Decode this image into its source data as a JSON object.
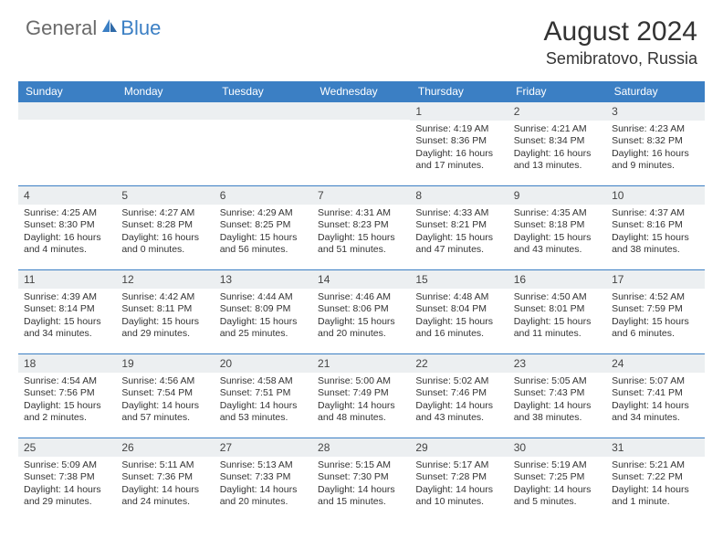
{
  "logo": {
    "general": "General",
    "blue": "Blue"
  },
  "title": {
    "main": "August 2024",
    "sub": "Semibratovo, Russia"
  },
  "colors": {
    "header_bg": "#3b7fc4",
    "header_fg": "#ffffff",
    "daynum_bg": "#eceff1",
    "border": "#3b7fc4",
    "text": "#333333",
    "logo_gray": "#6a6a6a",
    "logo_blue": "#3b7fc4"
  },
  "dow": [
    "Sunday",
    "Monday",
    "Tuesday",
    "Wednesday",
    "Thursday",
    "Friday",
    "Saturday"
  ],
  "weeks": [
    [
      {
        "n": "",
        "sr": "",
        "ss": "",
        "dl": ""
      },
      {
        "n": "",
        "sr": "",
        "ss": "",
        "dl": ""
      },
      {
        "n": "",
        "sr": "",
        "ss": "",
        "dl": ""
      },
      {
        "n": "",
        "sr": "",
        "ss": "",
        "dl": ""
      },
      {
        "n": "1",
        "sr": "Sunrise: 4:19 AM",
        "ss": "Sunset: 8:36 PM",
        "dl": "Daylight: 16 hours and 17 minutes."
      },
      {
        "n": "2",
        "sr": "Sunrise: 4:21 AM",
        "ss": "Sunset: 8:34 PM",
        "dl": "Daylight: 16 hours and 13 minutes."
      },
      {
        "n": "3",
        "sr": "Sunrise: 4:23 AM",
        "ss": "Sunset: 8:32 PM",
        "dl": "Daylight: 16 hours and 9 minutes."
      }
    ],
    [
      {
        "n": "4",
        "sr": "Sunrise: 4:25 AM",
        "ss": "Sunset: 8:30 PM",
        "dl": "Daylight: 16 hours and 4 minutes."
      },
      {
        "n": "5",
        "sr": "Sunrise: 4:27 AM",
        "ss": "Sunset: 8:28 PM",
        "dl": "Daylight: 16 hours and 0 minutes."
      },
      {
        "n": "6",
        "sr": "Sunrise: 4:29 AM",
        "ss": "Sunset: 8:25 PM",
        "dl": "Daylight: 15 hours and 56 minutes."
      },
      {
        "n": "7",
        "sr": "Sunrise: 4:31 AM",
        "ss": "Sunset: 8:23 PM",
        "dl": "Daylight: 15 hours and 51 minutes."
      },
      {
        "n": "8",
        "sr": "Sunrise: 4:33 AM",
        "ss": "Sunset: 8:21 PM",
        "dl": "Daylight: 15 hours and 47 minutes."
      },
      {
        "n": "9",
        "sr": "Sunrise: 4:35 AM",
        "ss": "Sunset: 8:18 PM",
        "dl": "Daylight: 15 hours and 43 minutes."
      },
      {
        "n": "10",
        "sr": "Sunrise: 4:37 AM",
        "ss": "Sunset: 8:16 PM",
        "dl": "Daylight: 15 hours and 38 minutes."
      }
    ],
    [
      {
        "n": "11",
        "sr": "Sunrise: 4:39 AM",
        "ss": "Sunset: 8:14 PM",
        "dl": "Daylight: 15 hours and 34 minutes."
      },
      {
        "n": "12",
        "sr": "Sunrise: 4:42 AM",
        "ss": "Sunset: 8:11 PM",
        "dl": "Daylight: 15 hours and 29 minutes."
      },
      {
        "n": "13",
        "sr": "Sunrise: 4:44 AM",
        "ss": "Sunset: 8:09 PM",
        "dl": "Daylight: 15 hours and 25 minutes."
      },
      {
        "n": "14",
        "sr": "Sunrise: 4:46 AM",
        "ss": "Sunset: 8:06 PM",
        "dl": "Daylight: 15 hours and 20 minutes."
      },
      {
        "n": "15",
        "sr": "Sunrise: 4:48 AM",
        "ss": "Sunset: 8:04 PM",
        "dl": "Daylight: 15 hours and 16 minutes."
      },
      {
        "n": "16",
        "sr": "Sunrise: 4:50 AM",
        "ss": "Sunset: 8:01 PM",
        "dl": "Daylight: 15 hours and 11 minutes."
      },
      {
        "n": "17",
        "sr": "Sunrise: 4:52 AM",
        "ss": "Sunset: 7:59 PM",
        "dl": "Daylight: 15 hours and 6 minutes."
      }
    ],
    [
      {
        "n": "18",
        "sr": "Sunrise: 4:54 AM",
        "ss": "Sunset: 7:56 PM",
        "dl": "Daylight: 15 hours and 2 minutes."
      },
      {
        "n": "19",
        "sr": "Sunrise: 4:56 AM",
        "ss": "Sunset: 7:54 PM",
        "dl": "Daylight: 14 hours and 57 minutes."
      },
      {
        "n": "20",
        "sr": "Sunrise: 4:58 AM",
        "ss": "Sunset: 7:51 PM",
        "dl": "Daylight: 14 hours and 53 minutes."
      },
      {
        "n": "21",
        "sr": "Sunrise: 5:00 AM",
        "ss": "Sunset: 7:49 PM",
        "dl": "Daylight: 14 hours and 48 minutes."
      },
      {
        "n": "22",
        "sr": "Sunrise: 5:02 AM",
        "ss": "Sunset: 7:46 PM",
        "dl": "Daylight: 14 hours and 43 minutes."
      },
      {
        "n": "23",
        "sr": "Sunrise: 5:05 AM",
        "ss": "Sunset: 7:43 PM",
        "dl": "Daylight: 14 hours and 38 minutes."
      },
      {
        "n": "24",
        "sr": "Sunrise: 5:07 AM",
        "ss": "Sunset: 7:41 PM",
        "dl": "Daylight: 14 hours and 34 minutes."
      }
    ],
    [
      {
        "n": "25",
        "sr": "Sunrise: 5:09 AM",
        "ss": "Sunset: 7:38 PM",
        "dl": "Daylight: 14 hours and 29 minutes."
      },
      {
        "n": "26",
        "sr": "Sunrise: 5:11 AM",
        "ss": "Sunset: 7:36 PM",
        "dl": "Daylight: 14 hours and 24 minutes."
      },
      {
        "n": "27",
        "sr": "Sunrise: 5:13 AM",
        "ss": "Sunset: 7:33 PM",
        "dl": "Daylight: 14 hours and 20 minutes."
      },
      {
        "n": "28",
        "sr": "Sunrise: 5:15 AM",
        "ss": "Sunset: 7:30 PM",
        "dl": "Daylight: 14 hours and 15 minutes."
      },
      {
        "n": "29",
        "sr": "Sunrise: 5:17 AM",
        "ss": "Sunset: 7:28 PM",
        "dl": "Daylight: 14 hours and 10 minutes."
      },
      {
        "n": "30",
        "sr": "Sunrise: 5:19 AM",
        "ss": "Sunset: 7:25 PM",
        "dl": "Daylight: 14 hours and 5 minutes."
      },
      {
        "n": "31",
        "sr": "Sunrise: 5:21 AM",
        "ss": "Sunset: 7:22 PM",
        "dl": "Daylight: 14 hours and 1 minute."
      }
    ]
  ]
}
